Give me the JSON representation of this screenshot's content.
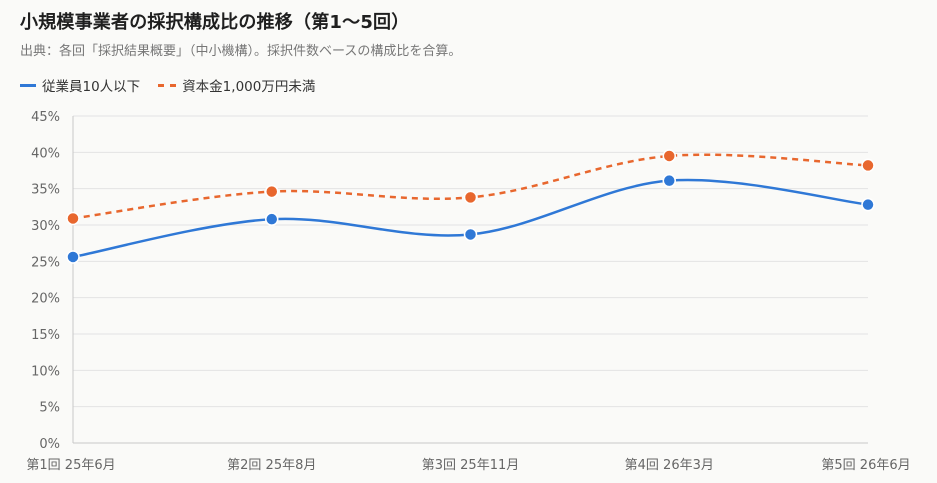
{
  "title": "小規模事業者の採択構成比の推移（第1〜5回）",
  "subtitle": "出典：各回「採択結果概要」（中小機構）。採択件数ベースの構成比を合算。",
  "colors": {
    "series1": "#2f78d6",
    "series2": "#e8672e",
    "grid": "#e3e3e3",
    "axis": "#c8c8c8",
    "tick": "#666666"
  },
  "chart_data": {
    "type": "line",
    "categories": [
      "第1回 25年6月",
      "第2回 25年8月",
      "第3回 25年11月",
      "第4回 26年3月",
      "第5回 26年6月"
    ],
    "y_ticks": [
      "0%",
      "5%",
      "10%",
      "15%",
      "20%",
      "25%",
      "30%",
      "35%",
      "40%",
      "45%"
    ],
    "ylim": [
      0,
      45
    ],
    "grid": true,
    "legend_position": "top-left",
    "series": [
      {
        "name": "従業員10人以下",
        "values": [
          25.6,
          30.8,
          28.7,
          36.1,
          32.8
        ],
        "style": "solid"
      },
      {
        "name": "資本金1,000万円未満",
        "values": [
          30.9,
          34.6,
          33.8,
          39.5,
          38.2
        ],
        "style": "dashed"
      }
    ]
  }
}
